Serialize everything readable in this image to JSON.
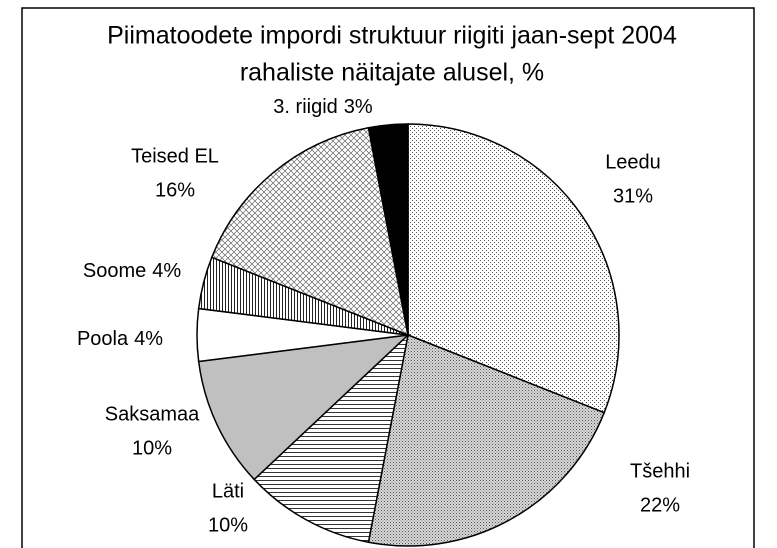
{
  "chart_data": {
    "type": "pie",
    "title": "Piimatoodete impordi struktuur riigiti jaan-sept 2004",
    "subtitle": "rahaliste näitajate alusel, %",
    "categories": [
      "Leedu",
      "Tšehhi",
      "Läti",
      "Saksamaa",
      "Poola",
      "Soome",
      "Teised EL",
      "3. riigid"
    ],
    "values": [
      31,
      22,
      10,
      10,
      4,
      4,
      16,
      3
    ],
    "value_labels": [
      "31%",
      "22%",
      "10%",
      "10%",
      "4%",
      "4%",
      "16%",
      "3%"
    ],
    "colors": [
      "#ffffff",
      "#ffffff",
      "#ffffff",
      "#c0c0c0",
      "#ffffff",
      "#ffffff",
      "#ffffff",
      "#000000"
    ],
    "patterns": [
      "dots",
      "dense-dots",
      "hlines",
      "solid",
      "solid",
      "vlines",
      "diamonds",
      "solid"
    ]
  }
}
